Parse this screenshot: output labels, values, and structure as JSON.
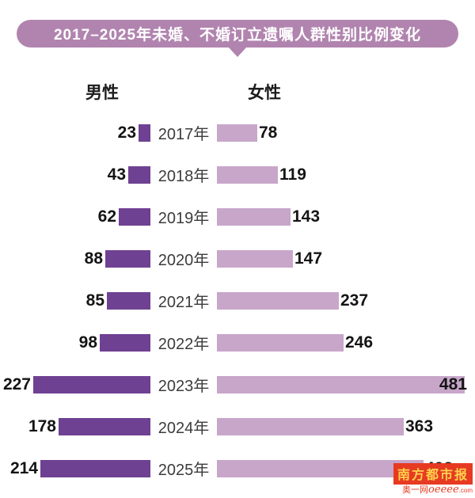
{
  "title": "2017–2025年未婚、不婚订立遗嘱人群性别比例变化",
  "legend": {
    "male": "男性",
    "female": "女性"
  },
  "chart_data": {
    "type": "bar",
    "variant": "diverging-horizontal",
    "title": "2017–2025年未婚、不婚订立遗嘱人群性别比例变化",
    "categories": [
      "2017年",
      "2018年",
      "2019年",
      "2020年",
      "2021年",
      "2022年",
      "2023年",
      "2024年",
      "2025年"
    ],
    "series": [
      {
        "name": "男性",
        "side": "left",
        "color": "#6f4192",
        "values": [
          23,
          43,
          62,
          88,
          85,
          98,
          227,
          178,
          214
        ]
      },
      {
        "name": "女性",
        "side": "right",
        "color": "#c8a6ca",
        "values": [
          78,
          119,
          143,
          147,
          237,
          246,
          481,
          363,
          402
        ]
      }
    ],
    "value_labels": true,
    "grid": false,
    "legend_position": "top",
    "xlim": [
      0,
      500
    ]
  },
  "colors": {
    "banner": "#b184af",
    "male_bar": "#6f4192",
    "female_bar": "#c8a6ca",
    "value_text": "#141414",
    "year_text": "#3c3c3c",
    "watermark_red": "#e63b22",
    "watermark_gold": "#ffd24d"
  },
  "watermark": {
    "brand": "南方都市报",
    "site_prefix": "奥一网",
    "site_script": "oeeee",
    "site_suffix": ".com"
  }
}
